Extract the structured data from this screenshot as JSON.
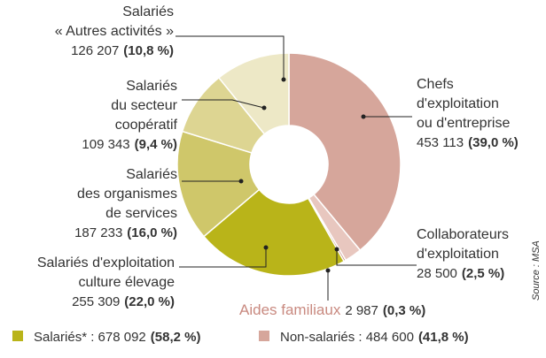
{
  "chart_data": {
    "type": "pie",
    "donut": true,
    "categories": [
      [
        "Chefs",
        "d'exploitation",
        "ou d'entreprise"
      ],
      [
        "Collaborateurs",
        "d'exploitation"
      ],
      [
        "Aides familiaux"
      ],
      [
        "Salariés d'exploitation",
        "culture élevage"
      ],
      [
        "Salariés",
        "des organismes",
        "de services"
      ],
      [
        "Salariés",
        "du secteur",
        "coopératif"
      ],
      [
        "Salariés",
        "« Autres activités »"
      ]
    ],
    "values": [
      39.0,
      2.5,
      0.3,
      22.0,
      16.0,
      9.4,
      10.8
    ],
    "value_labels": [
      "(39,0 %)",
      "(2,5 %)",
      "(0,3 %)",
      "(22,0 %)",
      "(16,0 %)",
      "(9,4 %)",
      "(10,8 %)"
    ],
    "counts": [
      "453 113",
      "28 500",
      "2 987",
      "255 309",
      "187 233",
      "109 343",
      "126 207"
    ],
    "colors": [
      "#d6a69b",
      "#e8c7bf",
      "#c4837a",
      "#b9b419",
      "#cfc76a",
      "#ddd592",
      "#ede8c6"
    ],
    "label_colors": [
      "#c98a80",
      "#c98a80",
      "#c98a80",
      "#a9a21a",
      "#a9a21a",
      "#a9a21a",
      "#a9a21a"
    ],
    "legend": [
      {
        "text": "Salariés* : 678 092",
        "share": "(58,2 %)",
        "color": "#b9b419"
      },
      {
        "text": "Non-salariés : 484 600",
        "share": "(41,8 %)",
        "color": "#d6a69b"
      }
    ],
    "source": "Source : MSA"
  }
}
